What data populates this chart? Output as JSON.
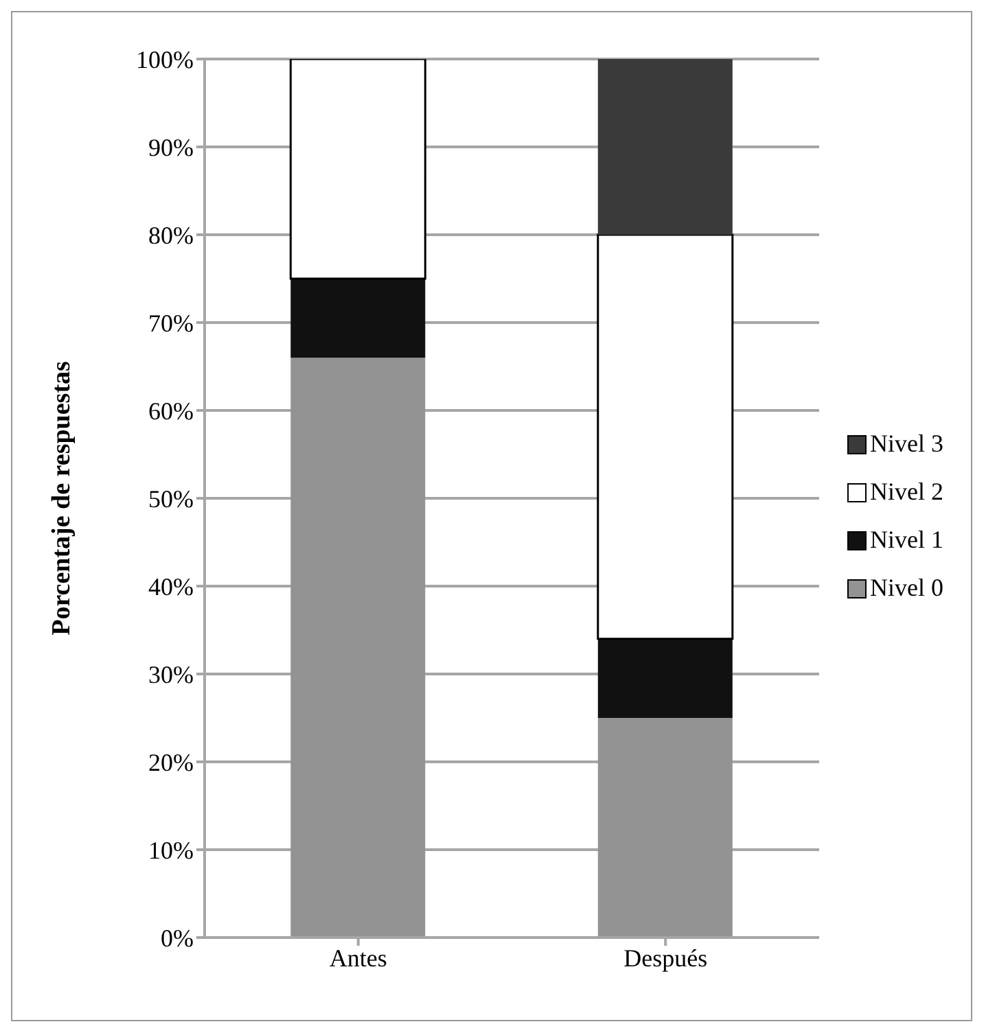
{
  "chart_data": {
    "type": "bar",
    "stacked": true,
    "ylabel": "Porcentaje de respuestas",
    "categories": [
      "Antes",
      "Después"
    ],
    "series": [
      {
        "name": "Nivel 0",
        "color": "#939393",
        "values": [
          66,
          25
        ]
      },
      {
        "name": "Nivel 1",
        "color": "#111111",
        "values": [
          9,
          9
        ]
      },
      {
        "name": "Nivel 2",
        "color": "#ffffff",
        "values": [
          25,
          46
        ]
      },
      {
        "name": "Nivel 3",
        "color": "#3a3a3a",
        "values": [
          0,
          20
        ]
      }
    ],
    "ylim": [
      0,
      100
    ],
    "yticks": [
      {
        "value": 0,
        "label": "0%"
      },
      {
        "value": 10,
        "label": "10%"
      },
      {
        "value": 20,
        "label": "20%"
      },
      {
        "value": 30,
        "label": "30%"
      },
      {
        "value": 40,
        "label": "40%"
      },
      {
        "value": 50,
        "label": "50%"
      },
      {
        "value": 60,
        "label": "60%"
      },
      {
        "value": 70,
        "label": "70%"
      },
      {
        "value": 80,
        "label": "80%"
      },
      {
        "value": 90,
        "label": "90%"
      },
      {
        "value": 100,
        "label": "100%"
      }
    ],
    "grid": "y",
    "legend": "right"
  }
}
